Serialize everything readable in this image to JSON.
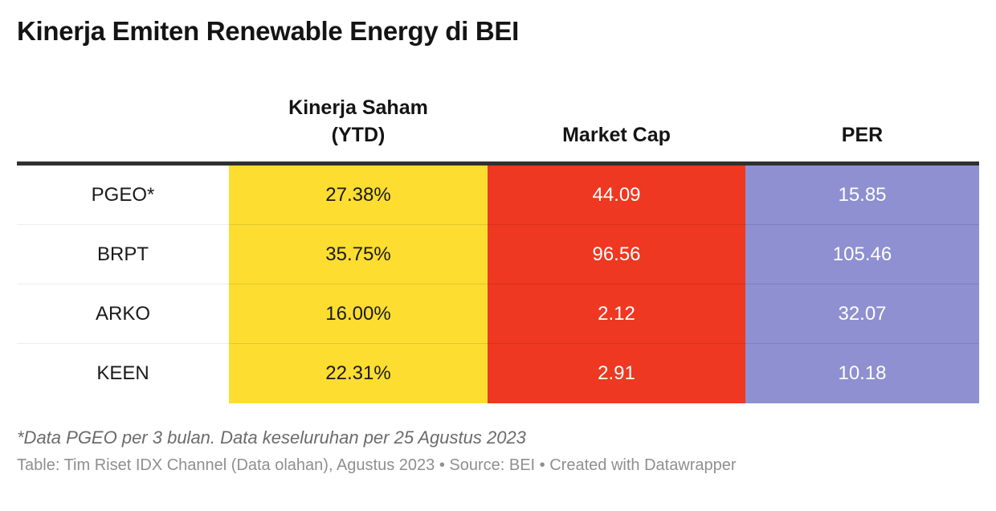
{
  "title": "Kinerja Emiten Renewable Energy di BEI",
  "colors": {
    "kinerja_saham_column": "#fcdd30",
    "market_cap_column": "#ee3821",
    "per_column": "#8e90d1",
    "header_rule": "#303030",
    "title_text": "#141414",
    "footnote_text": "#6b6b6b",
    "credit_text": "#8f8f8f"
  },
  "table": {
    "header": {
      "col0": "",
      "col1": "Kinerja Saham\n(YTD)",
      "col2": "Market Cap",
      "col3": "PER"
    },
    "rows": [
      {
        "label": "PGEO*",
        "kinerja_saham_ytd": "27.38%",
        "market_cap": "44.09",
        "per": "15.85"
      },
      {
        "label": "BRPT",
        "kinerja_saham_ytd": "35.75%",
        "market_cap": "96.56",
        "per": "105.46"
      },
      {
        "label": "ARKO",
        "kinerja_saham_ytd": "16.00%",
        "market_cap": "2.12",
        "per": "32.07"
      },
      {
        "label": "KEEN",
        "kinerja_saham_ytd": "22.31%",
        "market_cap": "2.91",
        "per": "10.18"
      }
    ]
  },
  "footnote": "*Data PGEO per 3 bulan. Data keseluruhan per 25 Agustus 2023",
  "credit": "Table: Tim Riset IDX Channel (Data olahan), Agustus 2023 • Source: BEI • Created with Datawrapper",
  "chart_data": {
    "type": "table",
    "title": "Kinerja Emiten Renewable Energy di BEI",
    "columns": [
      "",
      "Kinerja Saham (YTD)",
      "Market Cap",
      "PER"
    ],
    "rows": [
      [
        "PGEO*",
        "27.38%",
        44.09,
        15.85
      ],
      [
        "BRPT",
        "35.75%",
        96.56,
        105.46
      ],
      [
        "ARKO",
        "16.00%",
        2.12,
        32.07
      ],
      [
        "KEEN",
        "22.31%",
        2.91,
        10.18
      ]
    ],
    "column_colors": {
      "Kinerja Saham (YTD)": "#fcdd30",
      "Market Cap": "#ee3821",
      "PER": "#8e90d1"
    },
    "footnote": "*Data PGEO per 3 bulan. Data keseluruhan per 25 Agustus 2023",
    "credit": "Table: Tim Riset IDX Channel (Data olahan), Agustus 2023 • Source: BEI • Created with Datawrapper"
  }
}
